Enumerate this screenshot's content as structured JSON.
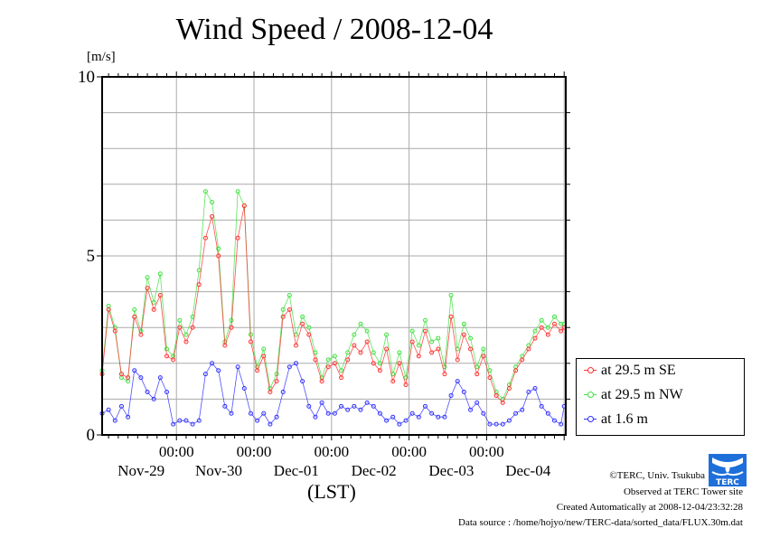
{
  "chart_data": {
    "type": "line",
    "title": "Wind Speed / 2008-12-04",
    "ylabel": "[m/s]",
    "xlabel": "(LST)",
    "ylim": [
      0,
      10
    ],
    "yticks": [
      "0",
      "5",
      "10"
    ],
    "x_units": "hours since Nov-28 00:00 (LST)",
    "xlim": [
      1,
      144.5
    ],
    "xticks": [
      {
        "at": 24,
        "time": "00:00",
        "date": "Nov-29"
      },
      {
        "at": 48,
        "time": "00:00",
        "date": "Nov-30"
      },
      {
        "at": 72,
        "time": "00:00",
        "date": "Dec-01"
      },
      {
        "at": 96,
        "time": "00:00",
        "date": "Dec-02"
      },
      {
        "at": 120,
        "time": "00:00",
        "date": "Dec-03"
      },
      {
        "at": 144,
        "time": "",
        "date": "Dec-04"
      }
    ],
    "grid": true,
    "legend_position": "right-bottom-outside",
    "series": [
      {
        "name": "at 29.5 m SE",
        "color": "#ff3030",
        "x": [
          1,
          3,
          5,
          7,
          9,
          11,
          13,
          15,
          17,
          19,
          21,
          23,
          25,
          27,
          29,
          31,
          33,
          35,
          37,
          39,
          41,
          43,
          45,
          47,
          49,
          51,
          53,
          55,
          57,
          59,
          61,
          63,
          65,
          67,
          69,
          71,
          73,
          75,
          77,
          79,
          81,
          83,
          85,
          87,
          89,
          91,
          93,
          95,
          97,
          99,
          101,
          103,
          105,
          107,
          109,
          111,
          113,
          115,
          117,
          119,
          121,
          123,
          125,
          127,
          129,
          131,
          133,
          135,
          137,
          139,
          141,
          143,
          144
        ],
        "values": [
          1.7,
          3.5,
          2.9,
          1.7,
          1.6,
          3.3,
          2.8,
          4.1,
          3.5,
          3.9,
          2.2,
          2.1,
          3.0,
          2.6,
          3.0,
          4.2,
          5.5,
          6.1,
          5.0,
          2.5,
          3.0,
          5.5,
          6.4,
          2.6,
          1.8,
          2.2,
          1.2,
          1.5,
          3.3,
          3.5,
          2.5,
          3.1,
          2.8,
          2.1,
          1.5,
          1.9,
          2.0,
          1.6,
          2.1,
          2.5,
          2.3,
          2.6,
          2.0,
          1.8,
          2.4,
          1.5,
          2.0,
          1.4,
          2.6,
          2.2,
          2.9,
          2.3,
          2.4,
          1.7,
          3.3,
          2.1,
          2.8,
          2.4,
          1.7,
          2.2,
          1.6,
          1.1,
          0.9,
          1.3,
          1.8,
          2.1,
          2.4,
          2.7,
          3.0,
          2.8,
          3.1,
          2.9,
          3.0
        ]
      },
      {
        "name": "at 29.5 m NW",
        "color": "#40e040",
        "x": [
          1,
          3,
          5,
          7,
          9,
          11,
          13,
          15,
          17,
          19,
          21,
          23,
          25,
          27,
          29,
          31,
          33,
          35,
          37,
          39,
          41,
          43,
          45,
          47,
          49,
          51,
          53,
          55,
          57,
          59,
          61,
          63,
          65,
          67,
          69,
          71,
          73,
          75,
          77,
          79,
          81,
          83,
          85,
          87,
          89,
          91,
          93,
          95,
          97,
          99,
          101,
          103,
          105,
          107,
          109,
          111,
          113,
          115,
          117,
          119,
          121,
          123,
          125,
          127,
          129,
          131,
          133,
          135,
          137,
          139,
          141,
          143,
          144
        ],
        "values": [
          1.8,
          3.6,
          3.0,
          1.6,
          1.5,
          3.5,
          2.9,
          4.4,
          3.7,
          4.5,
          2.4,
          2.2,
          3.2,
          2.8,
          3.3,
          4.6,
          6.8,
          6.5,
          5.2,
          2.6,
          3.2,
          6.8,
          6.4,
          2.8,
          1.9,
          2.4,
          1.3,
          1.7,
          3.5,
          3.9,
          2.8,
          3.3,
          3.0,
          2.3,
          1.6,
          2.1,
          2.2,
          1.8,
          2.3,
          2.8,
          3.1,
          2.9,
          2.3,
          2.0,
          2.8,
          1.7,
          2.3,
          1.6,
          2.9,
          2.5,
          3.2,
          2.6,
          2.7,
          1.9,
          3.9,
          2.4,
          3.1,
          2.7,
          1.9,
          2.4,
          1.8,
          1.2,
          1.0,
          1.4,
          1.9,
          2.2,
          2.5,
          2.9,
          3.2,
          3.0,
          3.3,
          3.1,
          3.1
        ]
      },
      {
        "name": "at 1.6 m",
        "color": "#3030ff",
        "x": [
          1,
          3,
          5,
          7,
          9,
          11,
          13,
          15,
          17,
          19,
          21,
          23,
          25,
          27,
          29,
          31,
          33,
          35,
          37,
          39,
          41,
          43,
          45,
          47,
          49,
          51,
          53,
          55,
          57,
          59,
          61,
          63,
          65,
          67,
          69,
          71,
          73,
          75,
          77,
          79,
          81,
          83,
          85,
          87,
          89,
          91,
          93,
          95,
          97,
          99,
          101,
          103,
          105,
          107,
          109,
          111,
          113,
          115,
          117,
          119,
          121,
          123,
          125,
          127,
          129,
          131,
          133,
          135,
          137,
          139,
          141,
          143,
          144
        ],
        "values": [
          0.6,
          0.7,
          0.4,
          0.8,
          0.5,
          1.8,
          1.6,
          1.2,
          1.0,
          1.6,
          1.2,
          0.3,
          0.4,
          0.4,
          0.3,
          0.4,
          1.7,
          2.0,
          1.8,
          0.8,
          0.6,
          1.9,
          1.3,
          0.6,
          0.4,
          0.6,
          0.3,
          0.5,
          1.2,
          1.9,
          2.0,
          1.5,
          0.8,
          0.5,
          0.9,
          0.6,
          0.6,
          0.8,
          0.7,
          0.8,
          0.7,
          0.9,
          0.8,
          0.6,
          0.4,
          0.5,
          0.3,
          0.4,
          0.6,
          0.5,
          0.8,
          0.6,
          0.5,
          0.5,
          1.1,
          1.5,
          1.2,
          0.7,
          0.9,
          0.6,
          0.3,
          0.3,
          0.3,
          0.4,
          0.6,
          0.7,
          1.2,
          1.3,
          0.8,
          0.6,
          0.4,
          0.3,
          0.8
        ]
      }
    ]
  },
  "footer": {
    "copyright": "©TERC, Univ. Tsukuba",
    "observed": "Observed at TERC Tower site",
    "created": "Created Automatically at 2008-12-04/23:32:28",
    "source": "Data source : /home/hojyo/new/TERC-data/sorted_data/FLUX.30m.dat",
    "logo_text": "TERC"
  }
}
